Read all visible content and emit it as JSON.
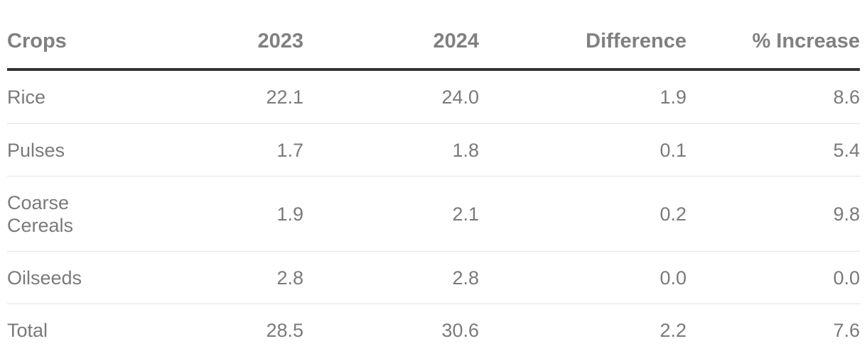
{
  "chart_data": {
    "type": "table",
    "columns": [
      "Crops",
      "2023",
      "2024",
      "Difference",
      "% Increase"
    ],
    "rows": [
      {
        "crop": "Rice",
        "y2023": "22.1",
        "y2024": "24.0",
        "difference": "1.9",
        "pct_increase": "8.6"
      },
      {
        "crop": "Pulses",
        "y2023": "1.7",
        "y2024": "1.8",
        "difference": "0.1",
        "pct_increase": "5.4"
      },
      {
        "crop": "Coarse Cereals",
        "y2023": "1.9",
        "y2024": "2.1",
        "difference": "0.2",
        "pct_increase": "9.8"
      },
      {
        "crop": "Oilseeds",
        "y2023": "2.8",
        "y2024": "2.8",
        "difference": "0.0",
        "pct_increase": "0.0"
      },
      {
        "crop": "Total",
        "y2023": "28.5",
        "y2024": "30.6",
        "difference": "2.2",
        "pct_increase": "7.6"
      }
    ]
  },
  "colors": {
    "header_text": "#808080",
    "body_text": "#7a7a7a",
    "header_rule": "#333333",
    "row_rule": "#e2e2e2"
  }
}
